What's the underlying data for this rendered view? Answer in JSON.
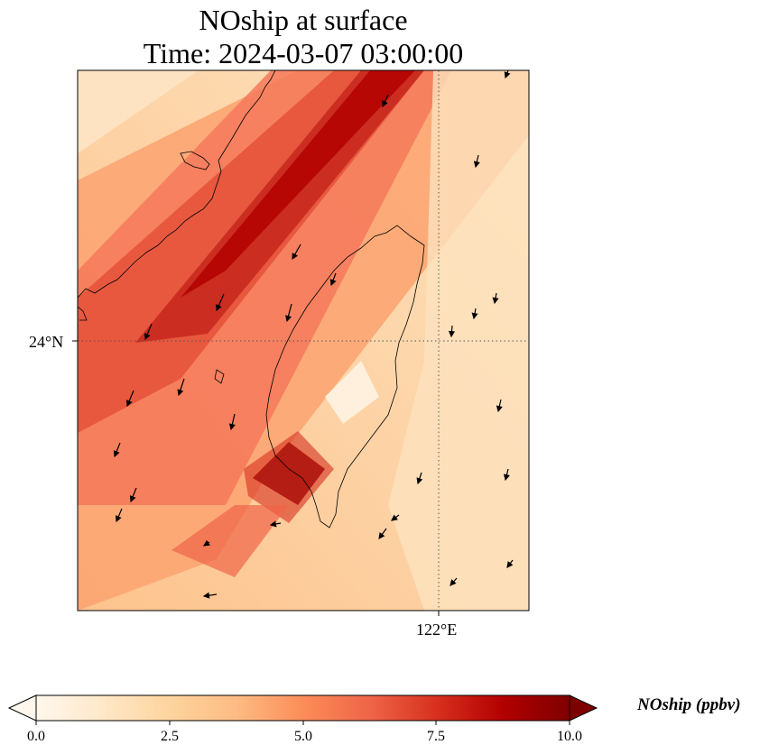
{
  "title": {
    "line1": "NOship at surface",
    "line2": "Time: 2024-03-07 03:00:00"
  },
  "map": {
    "lat_tick_label": "24°N",
    "lon_tick_label": "122°E",
    "gridline_style": "dotted",
    "wind_vectors": "black arrows, predominantly pointing south-southwest (NNE monsoon flow)"
  },
  "colorbar": {
    "title": "NOship (ppbv)",
    "colormap": "OrRd",
    "ticks": [
      "0.0",
      "2.5",
      "5.0",
      "7.5",
      "10.0"
    ],
    "min": 0.0,
    "max": 10.0,
    "extend": "both",
    "colors": [
      "#fff7ec",
      "#fee8c8",
      "#fdd49e",
      "#fdbb84",
      "#fc8d59",
      "#ef6548",
      "#d7301f",
      "#b30000",
      "#7f0000"
    ]
  }
}
